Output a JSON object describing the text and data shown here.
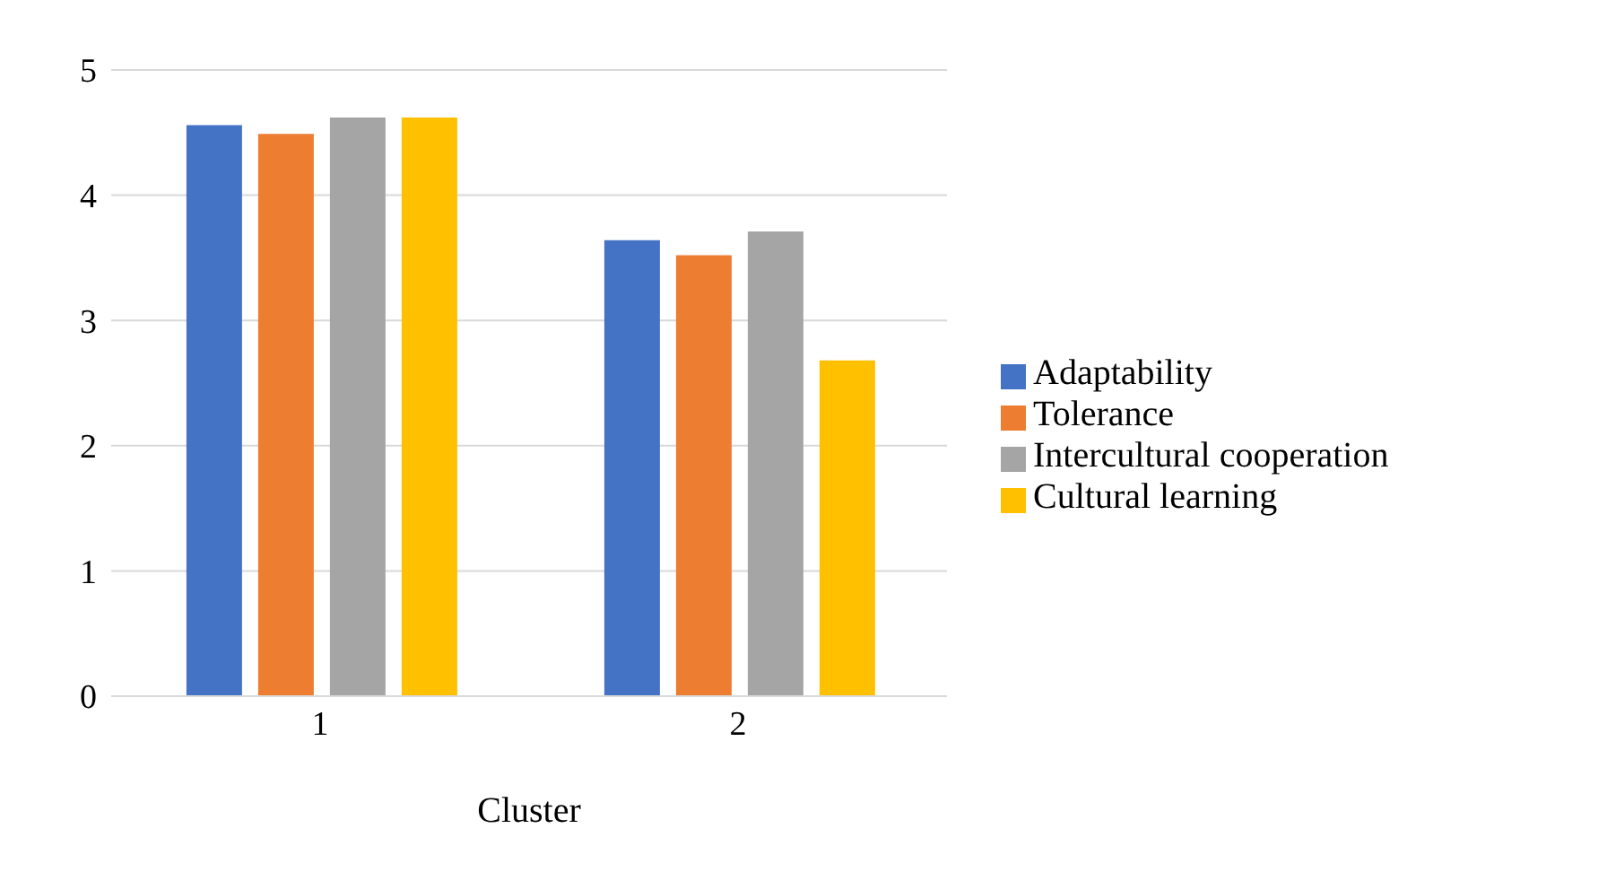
{
  "chart_data": {
    "type": "bar",
    "xlabel": "Cluster",
    "categories": [
      "1",
      "2"
    ],
    "series": [
      {
        "name": "Adaptability",
        "color": "#4472c4",
        "values": [
          4.56,
          3.64
        ]
      },
      {
        "name": "Tolerance",
        "color": "#ed7d31",
        "values": [
          4.49,
          3.52
        ]
      },
      {
        "name": "Intercultural cooperation",
        "color": "#a5a5a5",
        "values": [
          4.62,
          3.71
        ]
      },
      {
        "name": "Cultural learning",
        "color": "#ffc000",
        "values": [
          4.62,
          2.68
        ]
      }
    ],
    "ylim": [
      0,
      5
    ],
    "yticks": [
      0,
      1,
      2,
      3,
      4,
      5
    ],
    "grid": "y",
    "legend": "right"
  }
}
